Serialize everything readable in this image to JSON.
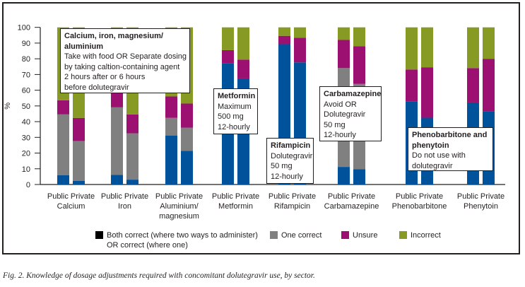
{
  "chart_data": {
    "type": "bar",
    "stacked": true,
    "title": "",
    "xlabel": "",
    "ylabel": "%",
    "ylim": [
      0,
      100
    ],
    "yticks": [
      0,
      10,
      20,
      30,
      40,
      50,
      60,
      70,
      80,
      90,
      100
    ],
    "grid": false,
    "legend_position": "bottom",
    "groups": [
      "Calcium",
      "Iron",
      "Aluminium/\nmagnesium",
      "Metformin",
      "Rifampicin",
      "Carbamazepine",
      "Phenobarbitone",
      "Phenytoin"
    ],
    "sub_categories": [
      "Public",
      "Private"
    ],
    "series": [
      {
        "name": "Both correct (where two ways to administer) OR correct (where one)",
        "color": "#00529b",
        "legend_color": "#000000",
        "values": [
          [
            6,
            2.4
          ],
          [
            6.2,
            3.1
          ],
          [
            31.2,
            21.4
          ],
          [
            77,
            67.5
          ],
          [
            89.3,
            77.7
          ],
          [
            11.2,
            9.8
          ],
          [
            52.7,
            42.5
          ],
          [
            52.2,
            46.5
          ]
        ]
      },
      {
        "name": "One correct",
        "color": "#808080",
        "values": [
          [
            38.6,
            25.3
          ],
          [
            42.9,
            29.5
          ],
          [
            11.2,
            14.8
          ],
          [
            0,
            0
          ],
          [
            0,
            0
          ],
          [
            62.9,
            54.2
          ],
          [
            0,
            0
          ],
          [
            0,
            0
          ]
        ]
      },
      {
        "name": "Unsure",
        "color": "#9b1070",
        "values": [
          [
            9,
            14.7
          ],
          [
            10,
            12
          ],
          [
            13.6,
            15.3
          ],
          [
            8.5,
            12
          ],
          [
            5.3,
            15.7
          ],
          [
            17.9,
            24
          ],
          [
            20.5,
            32.1
          ],
          [
            21.9,
            33.5
          ]
        ]
      },
      {
        "name": "Incorrect",
        "color": "#879a24",
        "values": [
          [
            46.4,
            57.6
          ],
          [
            40.9,
            55.4
          ],
          [
            44,
            48.5
          ],
          [
            14.5,
            20.5
          ],
          [
            5.4,
            6.6
          ],
          [
            8,
            12
          ],
          [
            26.8,
            25.4
          ],
          [
            25.9,
            20
          ]
        ]
      }
    ],
    "annotations": [
      {
        "title": "Calcium, iron, magnesium/ aluminium",
        "lines": [
          "Take with food OR Separate dosing",
          "by taking caltion-containing agent",
          "2 hours after or 6 hours",
          "before dolutegravir"
        ]
      },
      {
        "title": "Metformin",
        "lines": [
          "Maximum",
          "500 mg",
          " 12-hourly"
        ]
      },
      {
        "title": "Rifampicin",
        "lines": [
          "Dolutegravir",
          "50 mg",
          "12-hourly"
        ]
      },
      {
        "title": "Carbamazepine",
        "lines": [
          "Avoid OR",
          "Dolutegravir",
          "50 mg",
          "12-hourly"
        ]
      },
      {
        "title": "Phenobarbitone and phenytoin",
        "lines": [
          "Do not use with",
          "dolutegravir"
        ]
      }
    ]
  },
  "legend": {
    "items": [
      {
        "line1": "Both correct (where two ways to administer)",
        "line2": "OR correct (where one)",
        "color": "#000000"
      },
      {
        "line1": "One correct",
        "line2": "",
        "color": "#808080"
      },
      {
        "line1": "Unsure",
        "line2": "",
        "color": "#9b1070"
      },
      {
        "line1": "Incorrect",
        "line2": "",
        "color": "#879a24"
      }
    ]
  },
  "caption": "Fig. 2. Knowledge of dosage adjustments required with concomitant dolutegravir use, by sector."
}
